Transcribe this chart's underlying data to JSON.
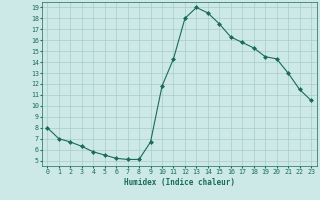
{
  "x": [
    0,
    1,
    2,
    3,
    4,
    5,
    6,
    7,
    8,
    9,
    10,
    11,
    12,
    13,
    14,
    15,
    16,
    17,
    18,
    19,
    20,
    21,
    22,
    23
  ],
  "y": [
    8.0,
    7.0,
    6.7,
    6.3,
    5.8,
    5.5,
    5.2,
    5.1,
    5.1,
    6.7,
    11.8,
    14.3,
    18.0,
    19.0,
    18.5,
    17.5,
    16.3,
    15.8,
    15.3,
    14.5,
    14.3,
    13.0,
    11.5,
    10.5
  ],
  "line_color": "#1a6b5a",
  "marker": "D",
  "marker_size": 2.0,
  "xlabel": "Humidex (Indice chaleur)",
  "xlim": [
    -0.5,
    23.5
  ],
  "ylim": [
    4.5,
    19.5
  ],
  "yticks": [
    5,
    6,
    7,
    8,
    9,
    10,
    11,
    12,
    13,
    14,
    15,
    16,
    17,
    18,
    19
  ],
  "xticks": [
    0,
    1,
    2,
    3,
    4,
    5,
    6,
    7,
    8,
    9,
    10,
    11,
    12,
    13,
    14,
    15,
    16,
    17,
    18,
    19,
    20,
    21,
    22,
    23
  ],
  "bg_color": "#cce9e8",
  "grid_color": "#aacccc",
  "font_color": "#1a6b5a",
  "axis_fontsize": 5.5,
  "tick_fontsize": 4.8
}
